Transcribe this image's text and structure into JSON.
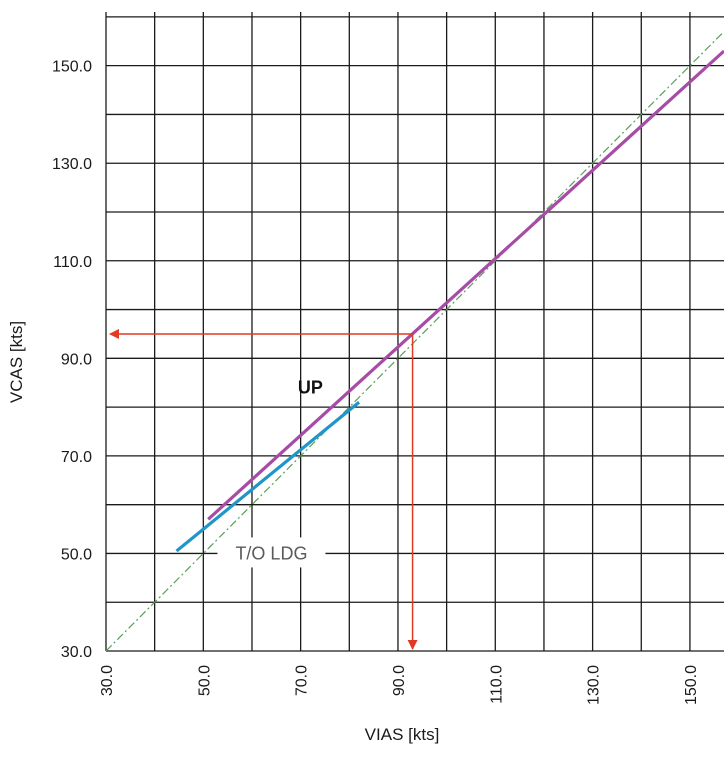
{
  "chart_data": {
    "type": "line",
    "xlabel": "VIAS [kts]",
    "ylabel": "VCAS [kts]",
    "xlim": [
      30,
      157
    ],
    "ylim": [
      30,
      161
    ],
    "x_ticks": [
      "30.0",
      "50.0",
      "70.0",
      "90.0",
      "110.0",
      "130.0",
      "150.0"
    ],
    "y_ticks": [
      "30.0",
      "50.0",
      "70.0",
      "90.0",
      "110.0",
      "130.0",
      "150.0"
    ],
    "grid": true,
    "series": [
      {
        "name": "UP",
        "color": "#a64ca6",
        "style": "solid",
        "x": [
          51,
          157
        ],
        "y": [
          57,
          153
        ]
      },
      {
        "name": "T/O LDG",
        "color": "#1f95c9",
        "style": "solid",
        "x": [
          44.5,
          82
        ],
        "y": [
          50.5,
          81
        ]
      },
      {
        "color": "#5a9e5a",
        "style": "dash-dot",
        "x": [
          30,
          157
        ],
        "y": [
          30,
          157
        ]
      }
    ],
    "example": {
      "color": "#e03a24",
      "vias": 93,
      "vcas": 95
    },
    "annotations": [
      {
        "text": "UP",
        "x": 72,
        "y": 84,
        "color": "#111111",
        "weight": "bold"
      },
      {
        "text": "T/O LDG",
        "x": 64,
        "y": 50,
        "color": "#5a5a5a",
        "weight": "normal"
      }
    ]
  }
}
